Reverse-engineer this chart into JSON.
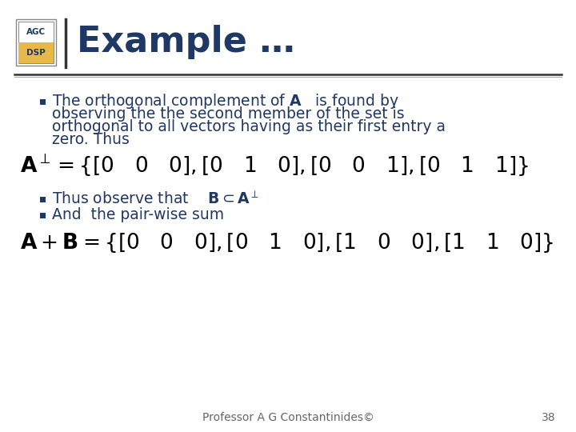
{
  "background_color": "#ffffff",
  "title": "Example …",
  "title_color": "#1f3864",
  "title_fontsize": 32,
  "logo_text_agc": "AGC",
  "logo_text_dsp": "DSP",
  "bullet_color": "#1f3864",
  "bullet_fontsize": 13.5,
  "math_fontsize": 19,
  "footer_text": "Professor A G Constantinides©",
  "footer_page": "38",
  "footer_fontsize": 10
}
